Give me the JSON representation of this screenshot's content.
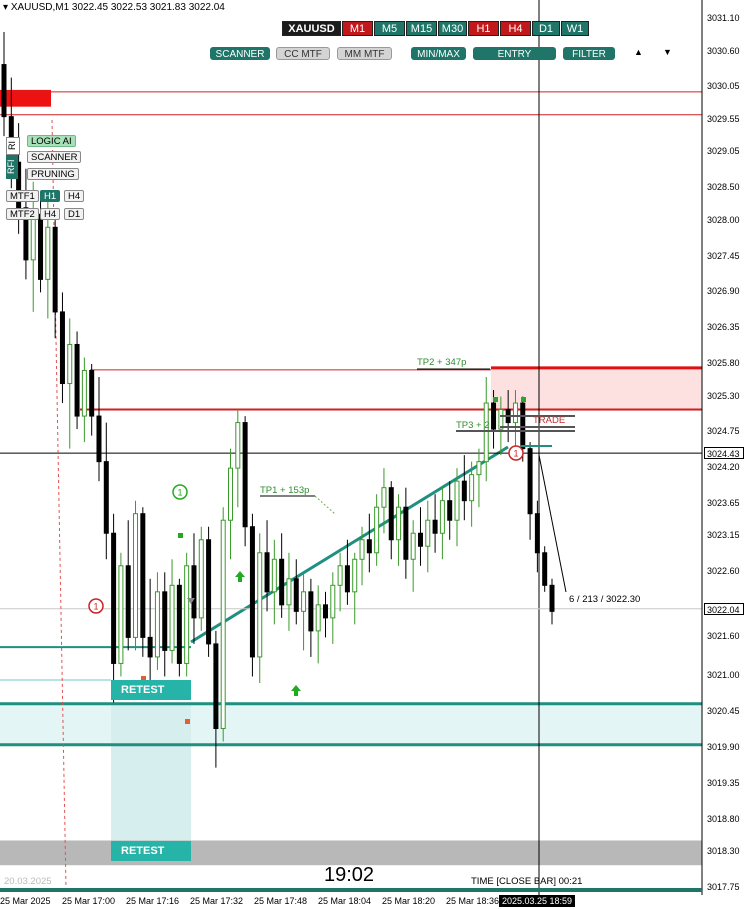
{
  "header": {
    "symbol_line": "XAUUSD,M1  3022.45 3022.53 3021.83 3022.04",
    "symbol_badge": "XAUUSD",
    "timeframes": [
      {
        "label": "M1",
        "color": "#c0181b"
      },
      {
        "label": "M5",
        "color": "#1f7567"
      },
      {
        "label": "M15",
        "color": "#1f7567"
      },
      {
        "label": "M30",
        "color": "#1f7567"
      },
      {
        "label": "H1",
        "color": "#c0181b"
      },
      {
        "label": "H4",
        "color": "#c0181b"
      },
      {
        "label": "D1",
        "color": "#1f7567"
      },
      {
        "label": "W1",
        "color": "#1f7567"
      }
    ],
    "pills": [
      {
        "label": "SCANNER",
        "on": true
      },
      {
        "label": "CC MTF",
        "on": false
      },
      {
        "label": "MM MTF",
        "on": false
      },
      {
        "label": "MIN/MAX",
        "on": true
      },
      {
        "label": "ENTRY POINTS",
        "on": true
      },
      {
        "label": "FILTER",
        "on": true
      }
    ],
    "arrow_up": "▲",
    "arrow_down": "▼"
  },
  "side_panel": {
    "vertical_labels": [
      "RI",
      "RFI"
    ],
    "logic_ai": "LOGIC AI",
    "scanner": "SCANNER",
    "pruning": "PRUNING",
    "mtf1": "MTF1",
    "mtf1_a": "H1",
    "mtf1_b": "H4",
    "mtf2": "MTF2",
    "mtf2_a": "H4",
    "mtf2_b": "D1"
  },
  "annotations": {
    "tp1": "TP1 + 153p",
    "tp2": "TP2 + 347p",
    "tp3": "TP3 + 2",
    "trade": "TRADE",
    "readout": "6 / 213 / 3022.30",
    "retest_top": "RETEST",
    "retest_bottom": "RETEST",
    "clock": "19:02",
    "close_bar": "TIME [CLOSE BAR]  00:21",
    "faded_date": "20.03.2025",
    "signal_markers": [
      "1",
      "1",
      "1"
    ]
  },
  "colors": {
    "bull": "#3a9a2a",
    "bear": "#000000",
    "teal": "#1f8f80",
    "red": "#e01010",
    "resistance_fill": "#fde0e0",
    "support_fill": "#e4f5f5"
  },
  "chart_data": {
    "type": "candlestick",
    "symbol": "XAUUSD",
    "timeframe": "M1",
    "ohlc_last": {
      "open": 3022.45,
      "high": 3022.53,
      "low": 3021.83,
      "close": 3022.04
    },
    "y_ticks": [
      "3031.10",
      "3030.60",
      "3030.05",
      "3029.55",
      "3029.05",
      "3028.50",
      "3028.00",
      "3027.45",
      "3026.90",
      "3026.35",
      "3025.80",
      "3025.30",
      "3024.75",
      "3024.20",
      "3023.65",
      "3023.15",
      "3022.60",
      "3021.60",
      "3021.00",
      "3020.45",
      "3019.90",
      "3019.35",
      "3018.80",
      "3018.30",
      "3017.75"
    ],
    "ylim": [
      3017.75,
      3031.1
    ],
    "x_ticks": [
      "25 Mar 2025",
      "25 Mar 17:00",
      "25 Mar 17:16",
      "25 Mar 17:32",
      "25 Mar 17:48",
      "25 Mar 18:04",
      "25 Mar 18:20",
      "25 Mar 18:36"
    ],
    "crosshair_time": "2025.03.25 18:59",
    "crosshair_price": "3024.43",
    "current_price": "3022.04",
    "levels": {
      "red_line_1": 3029.98,
      "red_line_2": 3029.63,
      "resistance_zone": [
        3025.08,
        3025.74
      ],
      "resistance_line": 3025.1,
      "support_zone": [
        3019.95,
        3020.58
      ],
      "teal_line": 3021.45,
      "bottom_zone": [
        3018.1,
        3018.48
      ]
    },
    "candles": [
      {
        "o": 3030.4,
        "h": 3030.9,
        "l": 3029.3,
        "c": 3029.6
      },
      {
        "o": 3029.6,
        "h": 3030.2,
        "l": 3028.5,
        "c": 3028.9
      },
      {
        "o": 3028.9,
        "h": 3029.5,
        "l": 3027.8,
        "c": 3028.2
      },
      {
        "o": 3028.2,
        "h": 3028.8,
        "l": 3027.1,
        "c": 3027.4
      },
      {
        "o": 3027.4,
        "h": 3028.6,
        "l": 3026.6,
        "c": 3028.1
      },
      {
        "o": 3028.1,
        "h": 3028.4,
        "l": 3026.9,
        "c": 3027.1
      },
      {
        "o": 3027.1,
        "h": 3028.3,
        "l": 3026.5,
        "c": 3027.9
      },
      {
        "o": 3027.9,
        "h": 3028.1,
        "l": 3026.2,
        "c": 3026.6
      },
      {
        "o": 3026.6,
        "h": 3026.9,
        "l": 3025.2,
        "c": 3025.5
      },
      {
        "o": 3025.5,
        "h": 3026.5,
        "l": 3024.5,
        "c": 3026.1
      },
      {
        "o": 3026.1,
        "h": 3026.3,
        "l": 3024.8,
        "c": 3025.0
      },
      {
        "o": 3025.0,
        "h": 3025.9,
        "l": 3024.6,
        "c": 3025.7
      },
      {
        "o": 3025.7,
        "h": 3025.8,
        "l": 3024.7,
        "c": 3025.0
      },
      {
        "o": 3025.0,
        "h": 3025.6,
        "l": 3024.0,
        "c": 3024.3
      },
      {
        "o": 3024.3,
        "h": 3024.9,
        "l": 3022.8,
        "c": 3023.2
      },
      {
        "o": 3023.2,
        "h": 3023.5,
        "l": 3020.6,
        "c": 3021.2
      },
      {
        "o": 3021.2,
        "h": 3022.9,
        "l": 3021.0,
        "c": 3022.7
      },
      {
        "o": 3022.7,
        "h": 3023.4,
        "l": 3021.4,
        "c": 3021.6
      },
      {
        "o": 3021.6,
        "h": 3023.7,
        "l": 3021.4,
        "c": 3023.5
      },
      {
        "o": 3023.5,
        "h": 3023.6,
        "l": 3021.3,
        "c": 3021.6
      },
      {
        "o": 3021.6,
        "h": 3022.5,
        "l": 3020.9,
        "c": 3021.3
      },
      {
        "o": 3021.3,
        "h": 3022.6,
        "l": 3021.1,
        "c": 3022.3
      },
      {
        "o": 3022.3,
        "h": 3022.6,
        "l": 3021.0,
        "c": 3021.4
      },
      {
        "o": 3021.4,
        "h": 3022.8,
        "l": 3021.2,
        "c": 3022.4
      },
      {
        "o": 3022.4,
        "h": 3022.5,
        "l": 3021.0,
        "c": 3021.2
      },
      {
        "o": 3021.2,
        "h": 3022.9,
        "l": 3021.0,
        "c": 3022.7
      },
      {
        "o": 3022.7,
        "h": 3023.2,
        "l": 3021.5,
        "c": 3021.9
      },
      {
        "o": 3021.9,
        "h": 3023.3,
        "l": 3021.7,
        "c": 3023.1
      },
      {
        "o": 3023.1,
        "h": 3023.3,
        "l": 3021.3,
        "c": 3021.5
      },
      {
        "o": 3021.5,
        "h": 3021.7,
        "l": 3019.6,
        "c": 3020.2
      },
      {
        "o": 3020.2,
        "h": 3023.6,
        "l": 3020.0,
        "c": 3023.4
      },
      {
        "o": 3023.4,
        "h": 3024.5,
        "l": 3022.8,
        "c": 3024.2
      },
      {
        "o": 3024.2,
        "h": 3025.1,
        "l": 3023.6,
        "c": 3024.9
      },
      {
        "o": 3024.9,
        "h": 3025.0,
        "l": 3023.0,
        "c": 3023.3
      },
      {
        "o": 3023.3,
        "h": 3023.5,
        "l": 3021.0,
        "c": 3021.3
      },
      {
        "o": 3021.3,
        "h": 3023.2,
        "l": 3020.9,
        "c": 3022.9
      },
      {
        "o": 3022.9,
        "h": 3023.4,
        "l": 3022.0,
        "c": 3022.3
      },
      {
        "o": 3022.3,
        "h": 3023.1,
        "l": 3021.8,
        "c": 3022.8
      },
      {
        "o": 3022.8,
        "h": 3023.2,
        "l": 3021.9,
        "c": 3022.1
      },
      {
        "o": 3022.1,
        "h": 3022.9,
        "l": 3021.7,
        "c": 3022.5
      },
      {
        "o": 3022.5,
        "h": 3022.8,
        "l": 3021.8,
        "c": 3022.0
      },
      {
        "o": 3022.0,
        "h": 3022.6,
        "l": 3021.4,
        "c": 3022.3
      },
      {
        "o": 3022.3,
        "h": 3022.5,
        "l": 3021.3,
        "c": 3021.7
      },
      {
        "o": 3021.7,
        "h": 3022.4,
        "l": 3021.2,
        "c": 3022.1
      },
      {
        "o": 3022.1,
        "h": 3022.3,
        "l": 3021.6,
        "c": 3021.9
      },
      {
        "o": 3021.9,
        "h": 3022.6,
        "l": 3021.5,
        "c": 3022.4
      },
      {
        "o": 3022.4,
        "h": 3022.9,
        "l": 3022.0,
        "c": 3022.7
      },
      {
        "o": 3022.7,
        "h": 3023.1,
        "l": 3022.1,
        "c": 3022.3
      },
      {
        "o": 3022.3,
        "h": 3022.9,
        "l": 3021.8,
        "c": 3022.8
      },
      {
        "o": 3022.8,
        "h": 3023.3,
        "l": 3022.4,
        "c": 3023.1
      },
      {
        "o": 3023.1,
        "h": 3023.5,
        "l": 3022.6,
        "c": 3022.9
      },
      {
        "o": 3022.9,
        "h": 3023.8,
        "l": 3022.7,
        "c": 3023.6
      },
      {
        "o": 3023.6,
        "h": 3024.2,
        "l": 3023.2,
        "c": 3023.9
      },
      {
        "o": 3023.9,
        "h": 3024.0,
        "l": 3022.8,
        "c": 3023.1
      },
      {
        "o": 3023.1,
        "h": 3023.8,
        "l": 3022.7,
        "c": 3023.6
      },
      {
        "o": 3023.6,
        "h": 3023.9,
        "l": 3022.5,
        "c": 3022.8
      },
      {
        "o": 3022.8,
        "h": 3023.4,
        "l": 3022.3,
        "c": 3023.2
      },
      {
        "o": 3023.2,
        "h": 3023.6,
        "l": 3022.7,
        "c": 3023.0
      },
      {
        "o": 3023.0,
        "h": 3023.7,
        "l": 3022.6,
        "c": 3023.4
      },
      {
        "o": 3023.4,
        "h": 3023.8,
        "l": 3022.9,
        "c": 3023.2
      },
      {
        "o": 3023.2,
        "h": 3023.9,
        "l": 3022.8,
        "c": 3023.7
      },
      {
        "o": 3023.7,
        "h": 3024.0,
        "l": 3023.1,
        "c": 3023.4
      },
      {
        "o": 3023.4,
        "h": 3024.2,
        "l": 3023.0,
        "c": 3024.0
      },
      {
        "o": 3024.0,
        "h": 3024.4,
        "l": 3023.4,
        "c": 3023.7
      },
      {
        "o": 3023.7,
        "h": 3024.3,
        "l": 3023.3,
        "c": 3024.1
      },
      {
        "o": 3024.1,
        "h": 3024.5,
        "l": 3023.6,
        "c": 3024.3
      },
      {
        "o": 3024.3,
        "h": 3025.6,
        "l": 3024.0,
        "c": 3025.2
      },
      {
        "o": 3025.2,
        "h": 3025.4,
        "l": 3024.5,
        "c": 3024.8
      },
      {
        "o": 3024.8,
        "h": 3025.3,
        "l": 3024.4,
        "c": 3025.1
      },
      {
        "o": 3025.1,
        "h": 3025.4,
        "l": 3024.6,
        "c": 3024.9
      },
      {
        "o": 3024.9,
        "h": 3025.4,
        "l": 3024.5,
        "c": 3025.2
      },
      {
        "o": 3025.2,
        "h": 3025.3,
        "l": 3024.3,
        "c": 3024.5
      },
      {
        "o": 3024.5,
        "h": 3024.6,
        "l": 3023.1,
        "c": 3023.5
      },
      {
        "o": 3023.5,
        "h": 3023.7,
        "l": 3022.6,
        "c": 3022.9
      },
      {
        "o": 3022.9,
        "h": 3023.0,
        "l": 3022.3,
        "c": 3022.4
      },
      {
        "o": 3022.4,
        "h": 3022.5,
        "l": 3021.8,
        "c": 3022.0
      }
    ]
  }
}
